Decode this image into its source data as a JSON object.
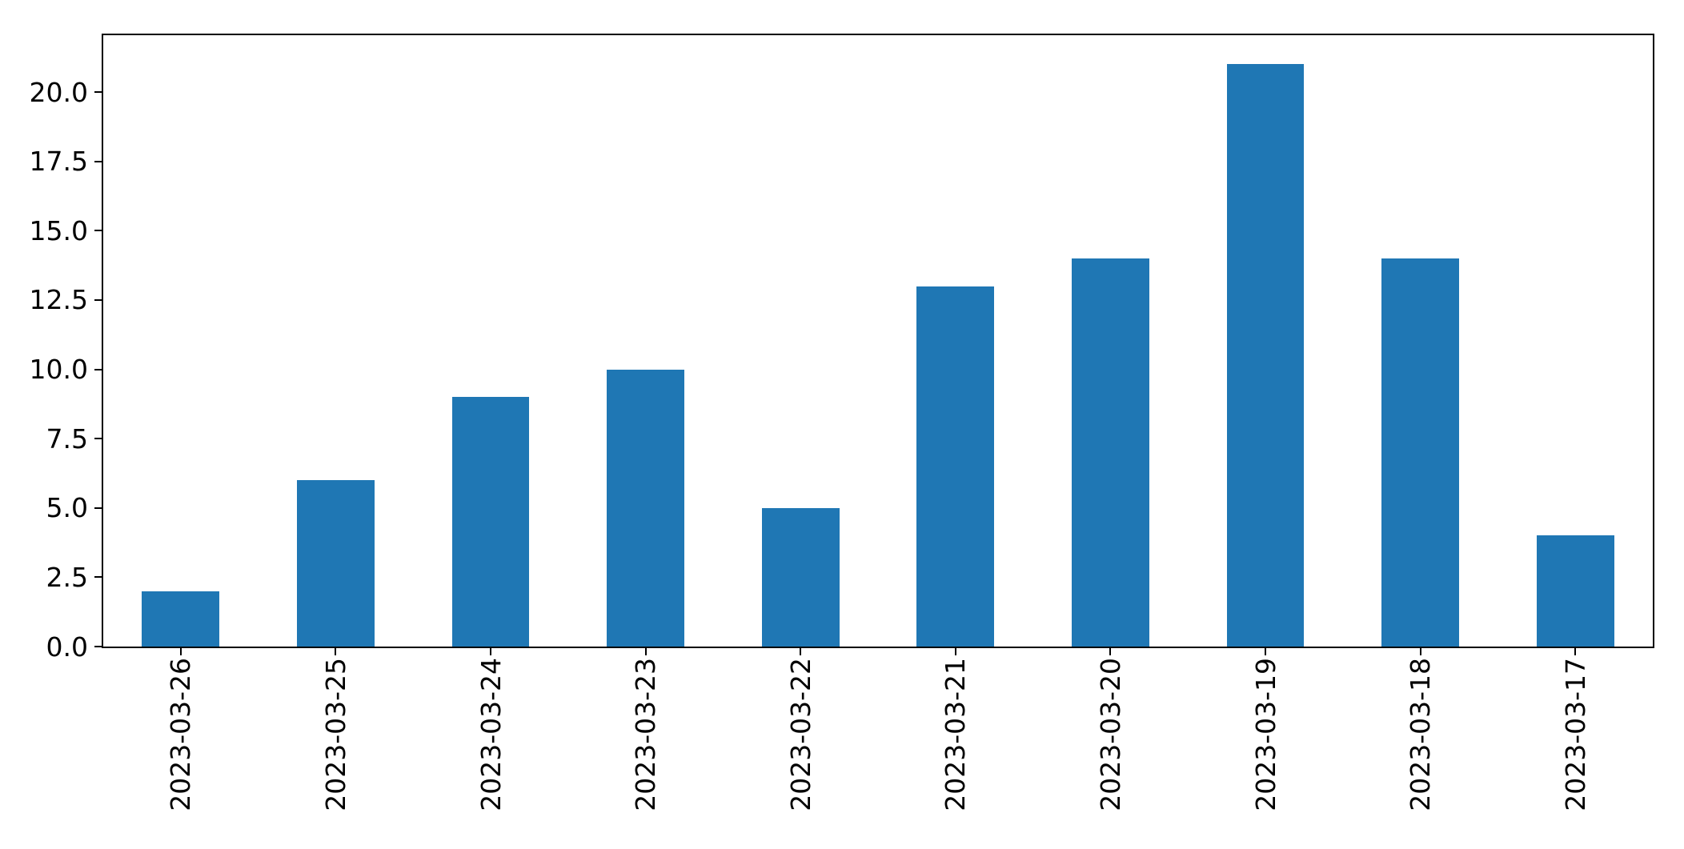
{
  "chart_data": {
    "type": "bar",
    "categories": [
      "2023-03-26",
      "2023-03-25",
      "2023-03-24",
      "2023-03-23",
      "2023-03-22",
      "2023-03-21",
      "2023-03-20",
      "2023-03-19",
      "2023-03-18",
      "2023-03-17"
    ],
    "values": [
      2,
      6,
      9,
      10,
      5,
      13,
      14,
      21,
      14,
      4
    ],
    "title": "",
    "xlabel": "",
    "ylabel": "",
    "ylim": [
      0,
      22.05
    ],
    "yticks": [
      0.0,
      2.5,
      5.0,
      7.5,
      10.0,
      12.5,
      15.0,
      17.5,
      20.0
    ],
    "ytick_labels": [
      "0.0",
      "2.5",
      "5.0",
      "7.5",
      "10.0",
      "12.5",
      "15.0",
      "17.5",
      "20.0"
    ],
    "x_tick_rotation": 90,
    "bar_color": "#1f77b4",
    "spine_color": "#000000",
    "text_color": "#000000",
    "bar_width_fraction": 0.5,
    "grid": false,
    "legend_position": "none"
  }
}
